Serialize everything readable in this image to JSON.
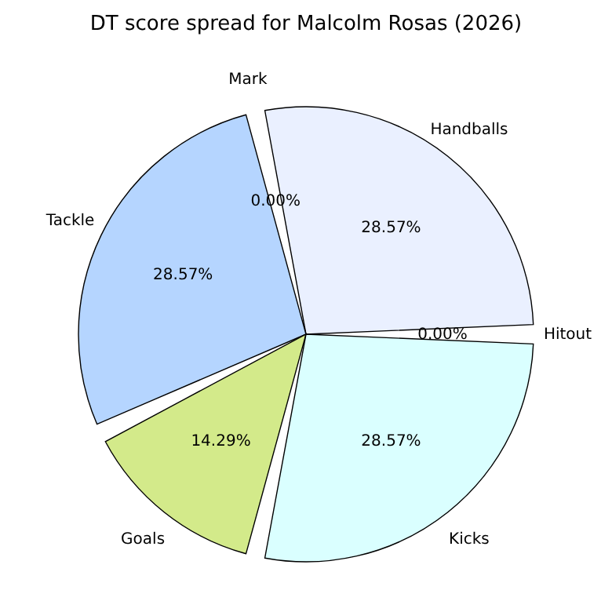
{
  "chart_data": {
    "type": "pie",
    "title": "DT score spread for Malcolm Rosas (2026)",
    "categories": [
      "Handballs",
      "Mark",
      "Tackle",
      "Goals",
      "Kicks",
      "Hitout"
    ],
    "values": [
      28.57,
      0,
      28.57,
      14.29,
      28.57,
      0
    ],
    "value_labels": [
      "28.57%",
      "0.00%",
      "28.57%",
      "14.29%",
      "28.57%",
      "0.00%"
    ],
    "colors": [
      "#eaf0ff",
      "#ffe4c4",
      "#b5d5ff",
      "#d3ea8a",
      "#daffff",
      "#e8e8e8"
    ],
    "legend": false
  }
}
